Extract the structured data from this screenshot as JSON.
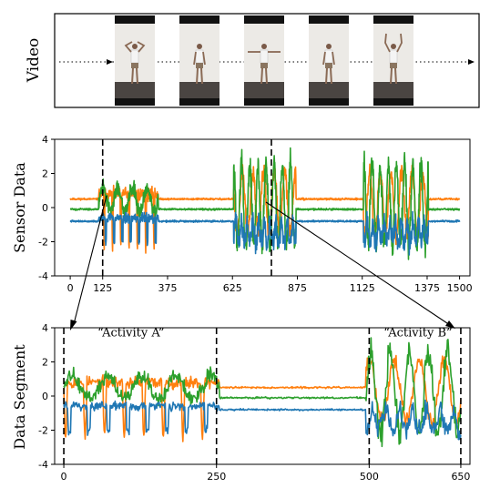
{
  "video_panel": {
    "label": "Video",
    "frames": [
      {
        "pose": "hands-on-head"
      },
      {
        "pose": "arms-down"
      },
      {
        "pose": "arms-out"
      },
      {
        "pose": "arms-down"
      },
      {
        "pose": "arms-up"
      }
    ]
  },
  "colors": {
    "blue": "#1f77b4",
    "orange": "#ff7f0e",
    "green": "#2ca02c"
  },
  "chart_data": [
    {
      "type": "line",
      "ylabel": "Sensor Data",
      "xlabel": "",
      "ylim": [
        -4,
        4
      ],
      "xlim": [
        -60,
        1540
      ],
      "xticks": [
        0,
        125,
        375,
        625,
        875,
        1125,
        1375,
        1500
      ],
      "yticks": [
        4,
        2,
        0,
        -2,
        -4
      ],
      "segment_markers": [
        125,
        775
      ],
      "series": [
        {
          "color": "orange",
          "base": 0.5,
          "active": [
            [
              125,
              375
            ],
            [
              625,
              875
            ],
            [
              1125,
              1375
            ]
          ]
        },
        {
          "color": "green",
          "base": -0.1,
          "active": [
            [
              125,
              375
            ],
            [
              625,
              875
            ],
            [
              1125,
              1375
            ]
          ]
        },
        {
          "color": "blue",
          "base": -0.85,
          "active": [
            [
              125,
              375
            ],
            [
              625,
              875
            ],
            [
              1125,
              1375
            ]
          ]
        }
      ]
    },
    {
      "type": "line",
      "ylabel": "Data Segment",
      "xlabel": "",
      "ylim": [
        -4,
        4
      ],
      "xlim": [
        -15,
        665
      ],
      "xticks": [
        0,
        250,
        500,
        650
      ],
      "yticks": [
        4,
        2,
        0,
        -2,
        -4
      ],
      "segment_markers": [
        0,
        250,
        500,
        650
      ],
      "annotations": [
        {
          "text": "“Activity A”",
          "x": 110,
          "y": 3.5
        },
        {
          "text": "“Activity B”",
          "x": 580,
          "y": 3.5
        }
      ]
    }
  ]
}
